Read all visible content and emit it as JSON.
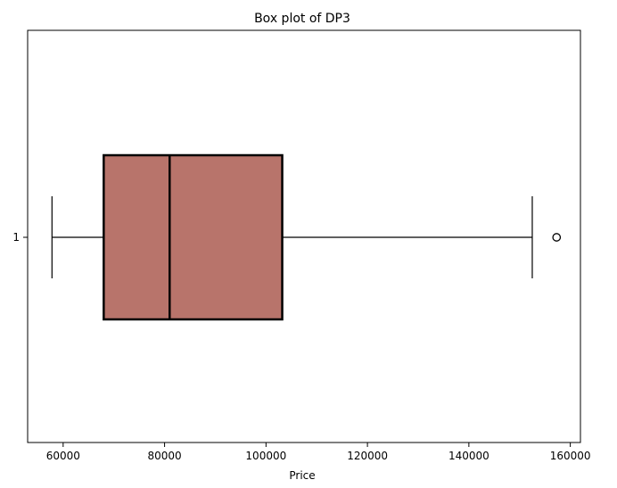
{
  "chart_data": {
    "type": "boxplot",
    "orientation": "horizontal",
    "title": "Box plot of DP3",
    "xlabel": "Price",
    "ylabel": "",
    "xlim": [
      53000,
      162000
    ],
    "x_ticks": [
      60000,
      80000,
      100000,
      120000,
      140000,
      160000
    ],
    "x_tick_labels": [
      "60000",
      "80000",
      "100000",
      "120000",
      "140000",
      "160000"
    ],
    "y_tick_labels": [
      "1"
    ],
    "grid": false,
    "series": [
      {
        "category": "1",
        "whisker_low": 57800,
        "q1": 68000,
        "median": 81000,
        "q3": 103200,
        "whisker_high": 152500,
        "outliers": [
          157300
        ]
      }
    ],
    "colors": {
      "box_fill": "#b8746b",
      "box_edge": "#000000",
      "whisker": "#000000"
    }
  }
}
